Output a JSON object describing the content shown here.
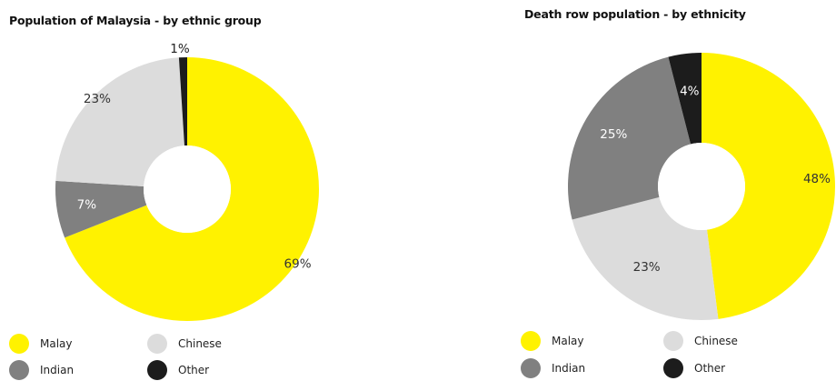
{
  "colors": {
    "Malay": "#fff200",
    "Chinese": "#dcdcdc",
    "Indian": "#808080",
    "Other": "#1c1c1c"
  },
  "chart_data": [
    {
      "type": "pie",
      "title": "Population of Malaysia - by ethnic group",
      "categories": [
        "Malay",
        "Chinese",
        "Indian",
        "Other"
      ],
      "values": [
        69,
        23,
        7,
        1
      ],
      "labels": [
        "69%",
        "23%",
        "7%",
        "1%"
      ],
      "legend_position": "bottom"
    },
    {
      "type": "pie",
      "title": "Death row population - by ethnicity",
      "categories": [
        "Malay",
        "Chinese",
        "Indian",
        "Other"
      ],
      "values": [
        48,
        23,
        25,
        4
      ],
      "labels": [
        "48%",
        "23%",
        "25%",
        "4%"
      ],
      "legend_position": "bottom"
    }
  ]
}
